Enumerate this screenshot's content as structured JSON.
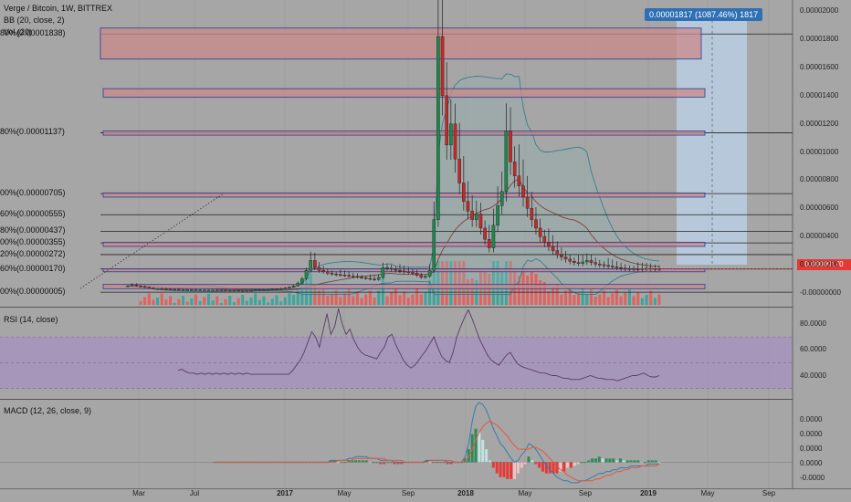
{
  "header": {
    "symbol": "Verge / Bitcoin, 1W, BITTREX",
    "bb_label": "BB (20, close, 2)",
    "vol_label": "Vol (20)",
    "rsi_label": "RSI (14, close)",
    "macd_label": "MACD (12, 26, close, 9)"
  },
  "measure_tooltip": "0.00001817 (1087.46%) 1817",
  "last_price": "0.00000170",
  "colors": {
    "background": "#a6a6a6",
    "bull": "#26a69a",
    "bear": "#ef5350",
    "fib_zone_fill": "#c98a8a",
    "fib_zone_border": "#2b3a8f",
    "rsi_band": "#a690bf",
    "measure_fill": "#bcd3ec",
    "bb_basis": "#8b3a3a",
    "bb_band": "#3a7d8c",
    "macd_line": "#2f7fb0",
    "signal_line": "#e8553a",
    "price_tag": "#e53935"
  },
  "chart_data": [
    {
      "type": "candlestick",
      "title": "Verge / Bitcoin, 1W, BITTREX",
      "x_ticks": [
        "Mar",
        "Jul",
        "2017",
        "May",
        "Sep",
        "2018",
        "May",
        "Sep",
        "2019",
        "May",
        "Sep"
      ],
      "y_ticks": [
        "0.00002000",
        "0.00001800",
        "0.00001600",
        "0.00001400",
        "0.00001200",
        "0.00001000",
        "0.00000800",
        "0.00000600",
        "0.00000400",
        "0.00000200",
        "-0.00000000"
      ],
      "ylim": [
        -2e-07,
        2.03e-05
      ],
      "fib_levels": [
        {
          "label": "80%(0.00001838)",
          "value": 1.838e-05
        },
        {
          "label": "80%(0.00001137)",
          "value": 1.137e-05
        },
        {
          "label": "00%(0.00000705)",
          "value": 7.05e-06
        },
        {
          "label": "60%(0.00000555)",
          "value": 5.55e-06
        },
        {
          "label": "80%(0.00000437)",
          "value": 4.37e-06
        },
        {
          "label": "00%(0.00000355)",
          "value": 3.55e-06
        },
        {
          "label": "20%(0.00000272)",
          "value": 2.72e-06
        },
        {
          "label": "60%(0.00000170)",
          "value": 1.7e-06
        },
        {
          "label": "00%(0.00000005)",
          "value": 5e-08
        }
      ],
      "extra_levels": [
        1.45e-05
      ],
      "close_series": [
        5e-07,
        5.5e-07,
        4.8e-07,
        4.5e-07,
        4e-07,
        3.5e-07,
        3e-07,
        3e-07,
        2.8e-07,
        2.6e-07,
        2.5e-07,
        2.5e-07,
        2.4e-07,
        2.4e-07,
        2.3e-07,
        2.3e-07,
        2.2e-07,
        2.2e-07,
        2e-07,
        2e-07,
        2e-07,
        1.9e-07,
        1.9e-07,
        1.8e-07,
        1.8e-07,
        1.8e-07,
        1.7e-07,
        1.7e-07,
        1.8e-07,
        1.8e-07,
        2e-07,
        2.1e-07,
        2.2e-07,
        2.4e-07,
        2.6e-07,
        2.8e-07,
        3e-07,
        3.4e-07,
        4e-07,
        5e-07,
        7e-07,
        1e-06,
        1.6e-06,
        2.3e-06,
        1.8e-06,
        1.6e-06,
        1.5e-06,
        1.4e-06,
        1.35e-06,
        1.3e-06,
        1.28e-06,
        1.25e-06,
        1.2e-06,
        1.18e-06,
        1.12e-06,
        1.08e-06,
        1.03e-06,
        9.8e-07,
        9.5e-07,
        1.1e-06,
        1.8e-06,
        1.75e-06,
        1.68e-06,
        1.6e-06,
        1.55e-06,
        1.5e-06,
        1.45e-06,
        1.4e-06,
        1.25e-06,
        1.1e-06,
        1.18e-06,
        1.6e-06,
        5.2e-06,
        1.82e-05,
        1.4e-05,
        1.05e-05,
        1.2e-05,
        9.5e-06,
        7.8e-06,
        6.5e-06,
        5.8e-06,
        5.2e-06,
        5.6e-06,
        4.6e-06,
        3.8e-06,
        3.2e-06,
        4.8e-06,
        6.2e-06,
        7.2e-06,
        1.15e-05,
        9.3e-06,
        8.3e-06,
        7.6e-06,
        6.8e-06,
        6e-06,
        5.2e-06,
        4.6e-06,
        4e-06,
        3.6e-06,
        3.3e-06,
        3e-06,
        2.7e-06,
        2.55e-06,
        2.4e-06,
        2.25e-06,
        2.15e-06,
        2.1e-06,
        2.2e-06,
        2.3e-06,
        2.15e-06,
        2.05e-06,
        2e-06,
        1.95e-06,
        1.9e-06,
        1.85e-06,
        1.8e-06,
        1.75e-06,
        1.7e-06,
        1.72e-06,
        1.7e-06,
        1.68e-06,
        1.72e-06,
        1.75e-06,
        1.7e-06,
        1.72e-06,
        1.7e-06
      ]
    },
    {
      "type": "line",
      "title": "RSI (14, close)",
      "y_ticks": [
        "80.0000",
        "60.0000",
        "40.0000"
      ],
      "ylim": [
        22,
        92
      ],
      "band": [
        30,
        70
      ],
      "values": [
        44,
        45,
        43,
        42,
        42,
        41,
        42,
        41,
        42,
        41,
        42,
        41,
        42,
        41,
        42,
        41,
        42,
        41,
        42,
        41,
        41,
        41,
        41,
        41,
        41,
        41,
        41,
        41,
        41,
        41,
        44,
        48,
        52,
        58,
        66,
        74,
        70,
        62,
        75,
        88,
        72,
        78,
        92,
        80,
        72,
        76,
        68,
        62,
        58,
        56,
        55,
        54,
        53,
        58,
        62,
        70,
        72,
        64,
        58,
        52,
        48,
        46,
        48,
        52,
        56,
        60,
        65,
        70,
        62,
        55,
        52,
        50,
        58,
        70,
        78,
        85,
        91,
        84,
        76,
        68,
        62,
        56,
        52,
        50,
        48,
        52,
        56,
        58,
        53,
        49,
        47,
        46,
        45,
        44,
        43,
        42,
        42,
        41,
        40,
        40,
        39,
        38,
        38,
        37,
        37,
        37,
        38,
        39,
        40,
        39,
        38,
        38,
        37,
        37,
        37,
        36,
        37,
        38,
        39,
        40,
        40,
        41,
        42,
        40,
        39,
        39,
        40
      ]
    },
    {
      "type": "line",
      "title": "MACD (12, 26, close, 9)",
      "y_ticks": [
        "0.0000",
        "0.0000",
        "0.0000",
        "0.0000",
        "-0.0000"
      ],
      "ylim": [
        -1.4e-06,
        3.3e-06
      ],
      "macd": [
        0.0,
        0.0,
        0.0,
        0.0,
        0.0,
        0.0,
        0.0,
        0.0,
        0.0,
        0.0,
        0.0,
        0.0,
        0.0,
        0.0,
        0.0,
        0.0,
        0.0,
        0.0,
        0.0,
        0.0,
        0.0,
        0.0,
        0.0,
        0.0,
        0.0,
        0.0,
        0.0,
        0.0,
        0.0,
        0.0,
        0.0,
        0.0,
        0.0,
        1e-07,
        1e-07,
        1e-07,
        1e-07,
        1e-07,
        2e-07,
        2e-07,
        3e-07,
        3e-07,
        3e-07,
        3e-07,
        2e-07,
        2e-07,
        2e-07,
        1e-07,
        1e-07,
        1e-07,
        1e-07,
        0.0,
        0.0,
        0.0,
        0.0,
        0.0,
        0.0,
        0.0,
        0.0,
        0.0,
        1e-07,
        1e-07,
        1e-07,
        1e-07,
        1e-07,
        1e-07,
        0.0,
        0.0,
        0.0,
        0.0,
        0.0,
        3e-07,
        1e-06,
        2.2e-06,
        3e-06,
        3.2e-06,
        3.1e-06,
        2.8e-06,
        2.3e-06,
        1.8e-06,
        1.4e-06,
        1e-06,
        8e-07,
        5e-07,
        2e-07,
        0.0,
        1e-07,
        4e-07,
        6e-07,
        1e-06,
        9e-07,
        7e-07,
        4e-07,
        1e-07,
        -2e-07,
        -4e-07,
        -6e-07,
        -8e-07,
        -9e-07,
        -1e-06,
        -1e-06,
        -1.1e-06,
        -1.1e-06,
        -1.1e-06,
        -1e-06,
        -1e-06,
        -9e-07,
        -8e-07,
        -7e-07,
        -6e-07,
        -6e-07,
        -5e-07,
        -5e-07,
        -4e-07,
        -4e-07,
        -3e-07,
        -3e-07,
        -3e-07,
        -2e-07,
        -2e-07,
        -2e-07,
        -2e-07,
        -2e-07,
        -1e-07,
        -1e-07,
        -1e-07,
        -1e-07
      ],
      "signal": [
        0.0,
        0.0,
        0.0,
        0.0,
        0.0,
        0.0,
        0.0,
        0.0,
        0.0,
        0.0,
        0.0,
        0.0,
        0.0,
        0.0,
        0.0,
        0.0,
        0.0,
        0.0,
        0.0,
        0.0,
        0.0,
        0.0,
        0.0,
        0.0,
        0.0,
        0.0,
        0.0,
        0.0,
        0.0,
        0.0,
        0.0,
        0.0,
        0.0,
        0.0,
        0.0,
        1e-07,
        1e-07,
        1e-07,
        1e-07,
        1e-07,
        2e-07,
        2e-07,
        2e-07,
        2e-07,
        2e-07,
        2e-07,
        2e-07,
        2e-07,
        2e-07,
        1e-07,
        1e-07,
        1e-07,
        1e-07,
        1e-07,
        0.0,
        0.0,
        0.0,
        0.0,
        0.0,
        0.0,
        0.0,
        1e-07,
        1e-07,
        1e-07,
        1e-07,
        1e-07,
        1e-07,
        1e-07,
        0.0,
        0.0,
        0.0,
        1e-07,
        3e-07,
        7e-07,
        1.2e-06,
        1.6e-06,
        1.9e-06,
        2.1e-06,
        2.2e-06,
        2.1e-06,
        2e-06,
        1.8e-06,
        1.6e-06,
        1.4e-06,
        1.1e-06,
        9e-07,
        7e-07,
        7e-07,
        7e-07,
        7e-07,
        8e-07,
        8e-07,
        7e-07,
        6e-07,
        4e-07,
        2e-07,
        0.0,
        -2e-07,
        -4e-07,
        -5e-07,
        -7e-07,
        -8e-07,
        -9e-07,
        -1e-06,
        -1e-06,
        -1e-06,
        -1e-06,
        -1e-06,
        -9e-07,
        -9e-07,
        -8e-07,
        -7e-07,
        -7e-07,
        -6e-07,
        -5e-07,
        -5e-07,
        -4e-07,
        -4e-07,
        -3e-07,
        -3e-07,
        -3e-07,
        -2e-07,
        -2e-07,
        -2e-07,
        -2e-07,
        -2e-07,
        -1e-07
      ]
    }
  ]
}
